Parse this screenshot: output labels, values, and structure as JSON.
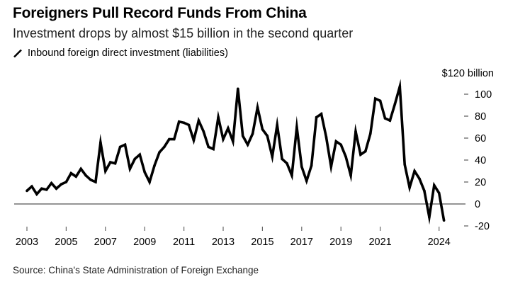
{
  "header": {
    "title": "Foreigners Pull Record Funds From China",
    "subtitle": "Investment drops by almost $15 billion in the second quarter"
  },
  "legend": {
    "icon": "line-swatch-icon",
    "label": "Inbound foreign direct investment (liabilities)",
    "color": "#000000"
  },
  "footer": {
    "source": "Source: China's State Administration of Foreign Exchange"
  },
  "chart_data": {
    "type": "line",
    "title": "Foreigners Pull Record Funds From China",
    "subtitle": "Investment drops by almost $15 billion in the second quarter",
    "xlabel": "",
    "ylabel": "$ billion",
    "y_unit_label": "$120 billion",
    "ylim": [
      -20,
      120
    ],
    "yticks": [
      -20,
      0,
      20,
      40,
      60,
      80,
      100
    ],
    "ytick_labels": [
      "-20",
      "0",
      "20",
      "40",
      "60",
      "80",
      "100"
    ],
    "xticks": [
      "2003",
      "2005",
      "2007",
      "2009",
      "2011",
      "2013",
      "2015",
      "2017",
      "2019",
      "2021",
      "2024"
    ],
    "x_start": "2003 Q1",
    "x_end": "2024 Q2",
    "frequency": "quarterly",
    "grid": false,
    "zero_line": true,
    "legend_position": "top-left",
    "axis_position": "right",
    "series": [
      {
        "name": "Inbound foreign direct investment (liabilities)",
        "color": "#000000",
        "values": [
          12,
          16,
          9,
          14,
          13,
          19,
          14,
          18,
          20,
          28,
          25,
          32,
          26,
          22,
          20,
          56,
          30,
          38,
          37,
          52,
          54,
          32,
          41,
          45,
          29,
          20,
          35,
          47,
          52,
          59,
          59,
          75,
          74,
          72,
          58,
          76,
          66,
          52,
          50,
          79,
          59,
          69,
          57,
          105,
          62,
          54,
          64,
          88,
          68,
          62,
          43,
          72,
          41,
          37,
          26,
          70,
          34,
          21,
          35,
          79,
          82,
          61,
          34,
          57,
          54,
          43,
          26,
          66,
          45,
          48,
          64,
          96,
          94,
          78,
          76,
          91,
          107,
          36,
          15,
          30,
          23,
          12,
          -12,
          17,
          10,
          -15
        ]
      }
    ]
  }
}
